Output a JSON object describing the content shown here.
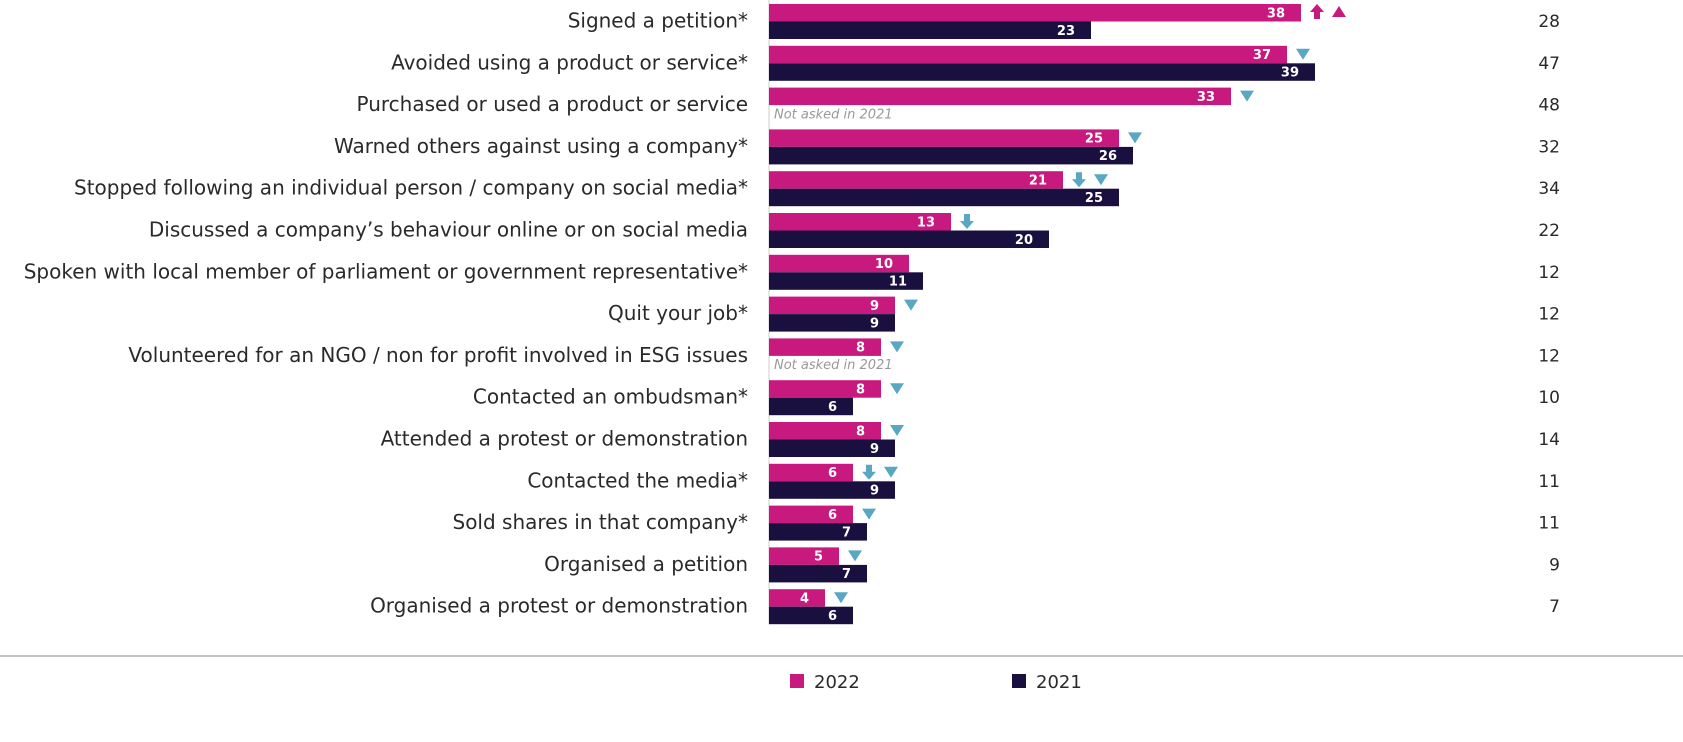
{
  "chart_data": {
    "type": "bar",
    "orientation": "horizontal",
    "categories": [
      "Signed a petition*",
      "Avoided using a product or service*",
      "Purchased or used a product or service",
      "Warned others against using a company*",
      "Stopped following an individual person / company on social media*",
      "Discussed a company’s behaviour online or on social media",
      "Spoken with local member of parliament or government representative*",
      "Quit your job*",
      "Volunteered for an NGO / non for profit involved in ESG issues",
      "Contacted an ombudsman*",
      "Attended a protest or demonstration",
      "Contacted the media*",
      "Sold shares in that company*",
      "Organised a petition",
      "Organised a protest or demonstration"
    ],
    "series": [
      {
        "name": "2022",
        "color": "#c8197f",
        "values": [
          38,
          37,
          33,
          25,
          21,
          13,
          10,
          9,
          8,
          8,
          8,
          6,
          6,
          5,
          4
        ]
      },
      {
        "name": "2021",
        "color": "#1a1040",
        "values": [
          23,
          39,
          null,
          26,
          25,
          20,
          11,
          9,
          null,
          6,
          9,
          9,
          7,
          7,
          6
        ],
        "value_labels": [
          "23",
          "39",
          "Not asked in 2021",
          "26",
          "25",
          "20",
          "11",
          "9",
          "Not asked in 2021",
          "6",
          "9",
          "9",
          "7",
          "7",
          "6"
        ]
      }
    ],
    "side_values": [
      28,
      47,
      48,
      32,
      34,
      22,
      12,
      12,
      12,
      10,
      14,
      11,
      11,
      9,
      7
    ],
    "indicators": [
      [
        "up-arrow",
        "up-triangle"
      ],
      [
        "down-triangle"
      ],
      [
        "down-triangle"
      ],
      [
        "down-triangle"
      ],
      [
        "down-arrow",
        "down-triangle"
      ],
      [
        "down-arrow"
      ],
      [],
      [
        "down-triangle"
      ],
      [
        "down-triangle"
      ],
      [
        "down-triangle"
      ],
      [
        "down-triangle"
      ],
      [
        "down-arrow",
        "down-triangle"
      ],
      [
        "down-triangle"
      ],
      [
        "down-triangle"
      ],
      [
        "down-triangle"
      ]
    ],
    "indicator_colors": {
      "up": "#c8197f",
      "down": "#5aa7c3"
    },
    "xlim": [
      0,
      60
    ],
    "legend": "bottom"
  }
}
